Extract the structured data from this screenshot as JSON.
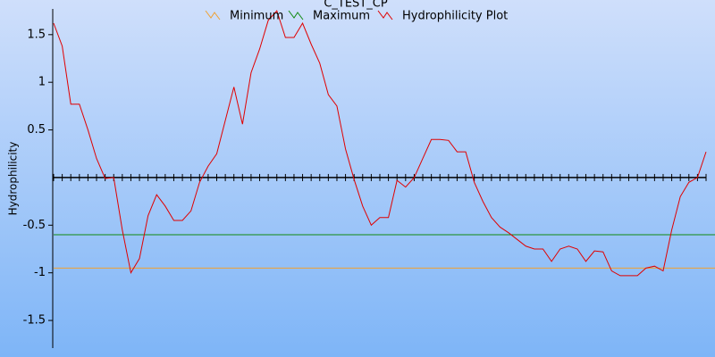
{
  "chart_data": {
    "type": "line",
    "title": "C_TEST_CP",
    "y_label": "Hydrophilicity",
    "x": [
      1,
      2,
      3,
      4,
      5,
      6,
      7,
      8,
      9,
      10,
      11,
      12,
      13,
      14,
      15,
      16,
      17,
      18,
      19,
      20,
      21,
      22,
      23,
      24,
      25,
      26,
      27,
      28,
      29,
      30,
      31,
      32,
      33,
      34,
      35,
      36,
      37,
      38,
      39,
      40,
      41,
      42,
      43,
      44,
      45,
      46,
      47,
      48,
      49,
      50,
      51,
      52,
      53,
      54,
      55,
      56,
      57,
      58,
      59,
      60,
      61,
      62,
      63,
      64,
      65,
      66,
      67,
      68,
      69,
      70,
      71,
      72,
      73,
      74,
      75,
      76,
      77
    ],
    "reference_lines": [
      {
        "name": "Minimum",
        "color": "#f0a030",
        "value": -0.95
      },
      {
        "name": "Maximum",
        "color": "#108a10",
        "value": -0.6
      }
    ],
    "series": [
      {
        "name": "Hydrophilicity Plot",
        "color": "#e00000",
        "values": [
          1.62,
          1.38,
          0.77,
          0.77,
          0.5,
          0.2,
          -0.01,
          0.0,
          -0.55,
          -1.0,
          -0.85,
          -0.4,
          -0.18,
          -0.3,
          -0.45,
          -0.45,
          -0.35,
          -0.05,
          0.12,
          0.25,
          0.6,
          0.95,
          0.56,
          1.1,
          1.35,
          1.65,
          1.75,
          1.47,
          1.47,
          1.62,
          1.4,
          1.2,
          0.87,
          0.75,
          0.3,
          -0.02,
          -0.3,
          -0.5,
          -0.42,
          -0.42,
          -0.03,
          -0.1,
          0.0,
          0.2,
          0.4,
          0.4,
          0.39,
          0.27,
          0.27,
          -0.05,
          -0.25,
          -0.42,
          -0.52,
          -0.58,
          -0.65,
          -0.72,
          -0.75,
          -0.75,
          -0.88,
          -0.75,
          -0.72,
          -0.75,
          -0.88,
          -0.77,
          -0.78,
          -0.98,
          -1.03,
          -1.03,
          -1.03,
          -0.95,
          -0.93,
          -0.98,
          -0.55,
          -0.2,
          -0.05,
          0.0,
          0.27
        ]
      }
    ],
    "xlim": [
      1,
      77
    ],
    "ylim": [
      -1.79,
      1.77
    ],
    "yticks": [
      1.5,
      1,
      0.5,
      -0.5,
      -1,
      -1.5
    ]
  }
}
